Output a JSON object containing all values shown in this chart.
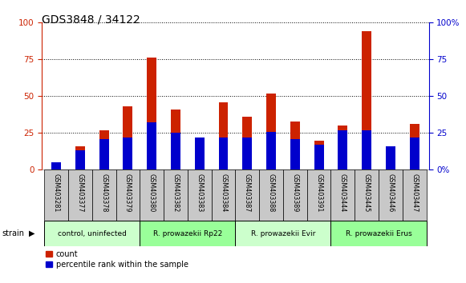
{
  "title": "GDS3848 / 34122",
  "samples": [
    "GSM403281",
    "GSM403377",
    "GSM403378",
    "GSM403379",
    "GSM403380",
    "GSM403382",
    "GSM403383",
    "GSM403384",
    "GSM403387",
    "GSM403388",
    "GSM403389",
    "GSM403391",
    "GSM403444",
    "GSM403445",
    "GSM403446",
    "GSM403447"
  ],
  "count_values": [
    2,
    16,
    27,
    43,
    76,
    41,
    21,
    46,
    36,
    52,
    33,
    20,
    30,
    94,
    13,
    31
  ],
  "percentile_values": [
    5,
    13,
    21,
    22,
    32,
    25,
    22,
    22,
    22,
    26,
    21,
    17,
    27,
    27,
    16,
    22
  ],
  "groups": [
    {
      "label": "control, uninfected",
      "start": 0,
      "end": 4,
      "color": "#ccffcc"
    },
    {
      "label": "R. prowazekii Rp22",
      "start": 4,
      "end": 8,
      "color": "#99ff99"
    },
    {
      "label": "R. prowazekii Evir",
      "start": 8,
      "end": 12,
      "color": "#ccffcc"
    },
    {
      "label": "R. prowazekii Erus",
      "start": 12,
      "end": 16,
      "color": "#99ff99"
    }
  ],
  "count_color": "#cc2200",
  "percentile_color": "#0000cc",
  "bar_width": 0.4,
  "ylim": [
    0,
    100
  ],
  "yticks": [
    0,
    25,
    50,
    75,
    100
  ],
  "title_fontsize": 10,
  "tick_fontsize": 7.5,
  "legend_count_label": "count",
  "legend_percentile_label": "percentile rank within the sample",
  "left_yaxis_color": "#cc2200",
  "right_yaxis_color": "#0000cc",
  "xlabel_area_color": "#c8c8c8",
  "strain_label": "strain"
}
